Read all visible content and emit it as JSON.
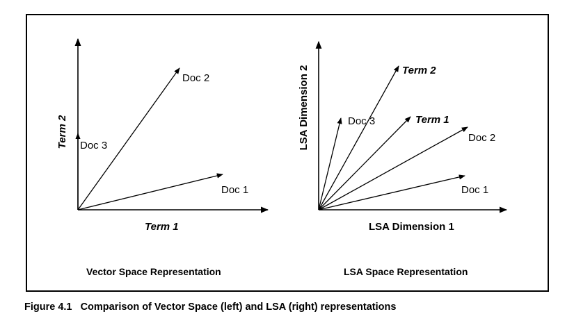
{
  "left_panel": {
    "x_axis_label": "Term 1",
    "y_axis_label": "Term 2",
    "title": "Vector Space Representation",
    "vectors": [
      "Doc 1",
      "Doc 2",
      "Doc 3"
    ]
  },
  "right_panel": {
    "x_axis_label": "LSA Dimension 1",
    "y_axis_label": "LSA Dimension 2",
    "title": "LSA Space Representation",
    "vectors": [
      "Doc 1",
      "Doc 2",
      "Doc 3",
      "Term 1",
      "Term 2"
    ]
  },
  "caption": "Figure 4.1   Comparison of Vector Space (left) and LSA (right) representations"
}
